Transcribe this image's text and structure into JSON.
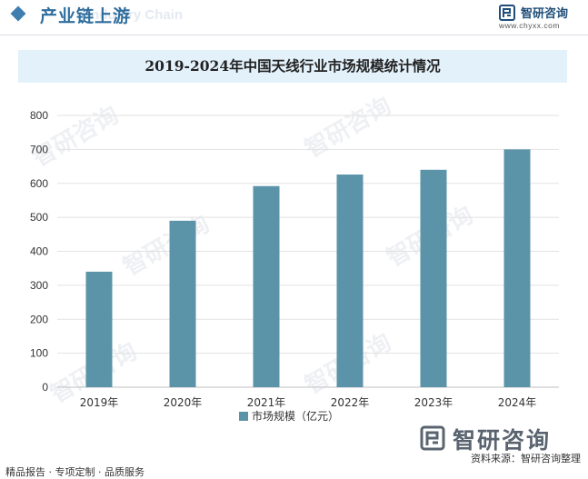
{
  "header": {
    "section_title": "产业链上游",
    "section_title_ghost": "Industry Chain",
    "brand_name": "智研咨询",
    "brand_url": "www.chyxx.com",
    "diamond_color": "#3f7fb0"
  },
  "watermark": "智研咨询",
  "chart_data": {
    "type": "bar",
    "title": "2019-2024年中国天线行业市场规模统计情况",
    "categories": [
      "2019年",
      "2020年",
      "2021年",
      "2022年",
      "2023年",
      "2024年"
    ],
    "series": [
      {
        "name": "市场规模（亿元）",
        "values": [
          340,
          490,
          592,
          626,
          640,
          700
        ],
        "color": "#5b93a9"
      }
    ],
    "xlabel": "",
    "ylabel": "",
    "ylim": [
      0,
      800
    ],
    "yticks": [
      0,
      100,
      200,
      300,
      400,
      500,
      600,
      700,
      800
    ],
    "grid": true,
    "legend_position": "bottom-center"
  },
  "footer": {
    "left_text": "精品报告 · 专项定制 · 品质服务",
    "logo_text": "智研咨询",
    "source_text": "资料来源：智研咨询整理"
  }
}
